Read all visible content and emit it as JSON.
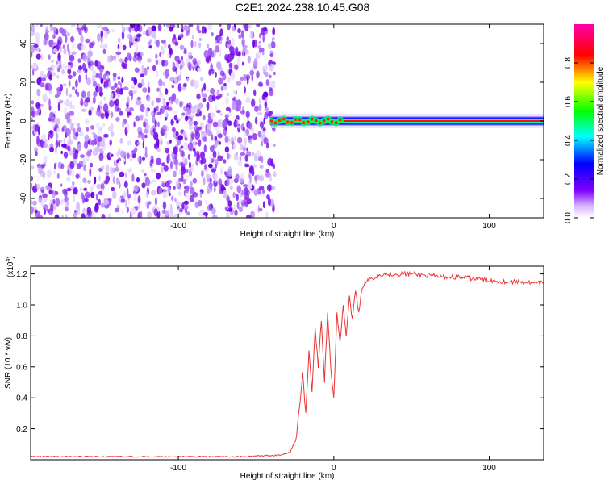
{
  "figure": {
    "title": "C2E1.2024.238.10.45.G08"
  },
  "chart_data": [
    {
      "type": "heatmap",
      "title": "C2E1.2024.238.10.45.G08",
      "xlabel": "Height of straight line (km)",
      "ylabel": "Frequency (Hz)",
      "xlim": [
        -195,
        135
      ],
      "ylim": [
        -50,
        50
      ],
      "xticks": [
        -100,
        0,
        100
      ],
      "yticks": [
        -40,
        -20,
        0,
        20,
        40
      ],
      "noise_region_x": [
        -195,
        -40
      ],
      "signal_track": {
        "x_start": -40,
        "x_end": 135,
        "frequency": 0
      },
      "colorbar": {
        "label": "Normalized spectral amplitude",
        "range": [
          0,
          1
        ],
        "ticks": [
          0.0,
          0.2,
          0.4,
          0.6,
          0.8
        ],
        "colors": [
          "#ffffff",
          "#8000ff",
          "#0000ff",
          "#00ffff",
          "#00ff00",
          "#ffff00",
          "#ff0000",
          "#ff00ff"
        ]
      }
    },
    {
      "type": "line",
      "xlabel": "Height of straight line (km)",
      "ylabel": "SNR (10 * v/v)",
      "y_multiplier_label": "(x10",
      "y_multiplier_exp": "4",
      "y_multiplier_close": ")",
      "xlim": [
        -195,
        135
      ],
      "ylim": [
        0,
        1.25
      ],
      "xticks": [
        -100,
        0,
        100
      ],
      "yticks": [
        0.2,
        0.4,
        0.6,
        0.8,
        1.0,
        1.2
      ],
      "series": [
        {
          "color": "#ee3333",
          "x": [
            -195,
            -150,
            -100,
            -60,
            -35,
            -28,
            -24,
            -22,
            -20,
            -18,
            -16,
            -14,
            -12,
            -10,
            -8,
            -6,
            -4,
            -2,
            0,
            2,
            4,
            6,
            8,
            10,
            12,
            14,
            16,
            18,
            20,
            25,
            30,
            40,
            50,
            60,
            70,
            80,
            90,
            100,
            110,
            120,
            130,
            135
          ],
          "values": [
            0.02,
            0.02,
            0.02,
            0.02,
            0.03,
            0.05,
            0.15,
            0.35,
            0.55,
            0.3,
            0.7,
            0.45,
            0.85,
            0.6,
            0.9,
            0.5,
            0.95,
            0.6,
            0.4,
            0.95,
            0.75,
            1.0,
            0.8,
            1.05,
            0.9,
            1.1,
            0.95,
            1.1,
            1.15,
            1.17,
            1.2,
            1.2,
            1.2,
            1.19,
            1.18,
            1.18,
            1.17,
            1.16,
            1.15,
            1.15,
            1.14,
            1.14
          ]
        }
      ]
    }
  ]
}
